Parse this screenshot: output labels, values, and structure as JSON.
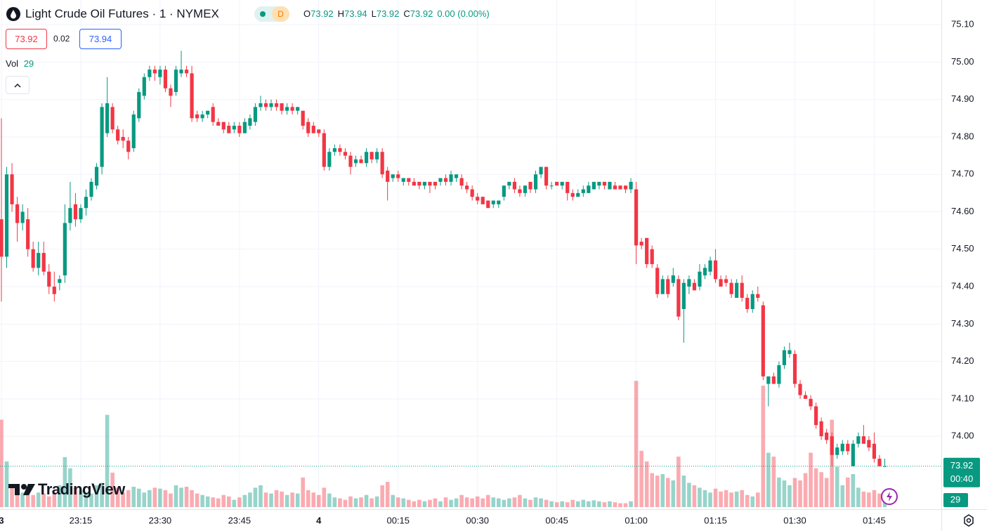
{
  "chart_data": {
    "type": "candlestick",
    "title": "Light Crude Oil Futures · 1 · NYMEX",
    "status_badge": "D",
    "ohlc_legend": [
      {
        "label": "O",
        "value": 73.92
      },
      {
        "label": "H",
        "value": 73.94
      },
      {
        "label": "L",
        "value": 73.92
      },
      {
        "label": "C",
        "value": 73.92
      }
    ],
    "change_label": "0.00 (0.00%)",
    "bid": 73.92,
    "spread": 0.02,
    "ask": 73.94,
    "volume_label": "Vol",
    "last_volume": 29,
    "last_price": 73.92,
    "countdown": "00:40",
    "logo": "TradingView",
    "up_color": "#089981",
    "down_color": "#f23645",
    "volume_up_color": "rgba(8,153,129,0.42)",
    "volume_down_color": "rgba(242,54,69,0.42)",
    "ylim": [
      73.805,
      75.166
    ],
    "yticks": [
      {
        "value": 75.1,
        "label": "75.10"
      },
      {
        "value": 75,
        "label": "75.00"
      },
      {
        "value": 74.9,
        "label": "74.90"
      },
      {
        "value": 74.8,
        "label": "74.80"
      },
      {
        "value": 74.7,
        "label": "74.70"
      },
      {
        "value": 74.6,
        "label": "74.60"
      },
      {
        "value": 74.5,
        "label": "74.50"
      },
      {
        "value": 74.4,
        "label": "74.40"
      },
      {
        "value": 74.3,
        "label": "74.30"
      },
      {
        "value": 74.2,
        "label": "74.20"
      },
      {
        "value": 74.1,
        "label": "74.10"
      },
      {
        "value": 74,
        "label": "74.00"
      }
    ],
    "vlim": [
      0,
      350
    ],
    "grid": true,
    "categories": [
      "3",
      null,
      null,
      null,
      null,
      null,
      null,
      null,
      null,
      null,
      null,
      null,
      null,
      null,
      null,
      "23:15",
      null,
      null,
      null,
      null,
      null,
      null,
      null,
      null,
      null,
      null,
      null,
      null,
      null,
      null,
      "23:30",
      null,
      null,
      null,
      null,
      null,
      null,
      null,
      null,
      null,
      null,
      null,
      null,
      null,
      null,
      "23:45",
      null,
      null,
      null,
      null,
      null,
      null,
      null,
      null,
      null,
      null,
      null,
      null,
      null,
      null,
      "4",
      null,
      null,
      null,
      null,
      null,
      null,
      null,
      null,
      null,
      null,
      null,
      null,
      null,
      null,
      "00:15",
      null,
      null,
      null,
      null,
      null,
      null,
      null,
      null,
      null,
      null,
      null,
      null,
      null,
      null,
      "00:30",
      null,
      null,
      null,
      null,
      null,
      null,
      null,
      null,
      null,
      null,
      null,
      null,
      null,
      null,
      "00:45",
      null,
      null,
      null,
      null,
      null,
      null,
      null,
      null,
      null,
      null,
      null,
      null,
      null,
      null,
      "01:00",
      null,
      null,
      null,
      null,
      null,
      null,
      null,
      null,
      null,
      null,
      null,
      null,
      null,
      null,
      "01:15",
      null,
      null,
      null,
      null,
      null,
      null,
      null,
      null,
      null,
      null,
      null,
      null,
      null,
      null,
      "01:30",
      null,
      null,
      null,
      null,
      null,
      null,
      null,
      null,
      null,
      null,
      null,
      null,
      null,
      null,
      "01:45",
      null,
      null
    ],
    "ohlc": [
      [
        74.58,
        74.85,
        74.36,
        74.48
      ],
      [
        74.48,
        74.72,
        74.45,
        74.7
      ],
      [
        74.7,
        74.73,
        74.6,
        74.62
      ],
      [
        74.62,
        74.64,
        74.52,
        74.57
      ],
      [
        74.57,
        74.62,
        74.55,
        74.6
      ],
      [
        74.58,
        74.61,
        74.48,
        74.5
      ],
      [
        74.5,
        74.52,
        74.44,
        74.45
      ],
      [
        74.45,
        74.52,
        74.43,
        74.49
      ],
      [
        74.49,
        74.52,
        74.43,
        74.44
      ],
      [
        74.44,
        74.46,
        74.38,
        74.4
      ],
      [
        74.4,
        74.44,
        74.36,
        74.38
      ],
      [
        74.41,
        74.43,
        74.39,
        74.42
      ],
      [
        74.43,
        74.62,
        74.41,
        74.57
      ],
      [
        74.57,
        74.68,
        74.55,
        74.61
      ],
      [
        74.62,
        74.65,
        74.56,
        74.58
      ],
      [
        74.58,
        74.62,
        74.57,
        74.61
      ],
      [
        74.61,
        74.66,
        74.59,
        74.64
      ],
      [
        74.64,
        74.69,
        74.63,
        74.68
      ],
      [
        74.67,
        74.73,
        74.66,
        74.72
      ],
      [
        74.72,
        74.89,
        74.7,
        74.88
      ],
      [
        74.81,
        74.96,
        74.8,
        74.89
      ],
      [
        74.88,
        74.89,
        74.81,
        74.82
      ],
      [
        74.82,
        74.83,
        74.78,
        74.79
      ],
      [
        74.8,
        74.82,
        74.77,
        74.79
      ],
      [
        74.79,
        74.8,
        74.74,
        74.76
      ],
      [
        74.77,
        74.87,
        74.76,
        74.86
      ],
      [
        74.85,
        74.93,
        74.84,
        74.92
      ],
      [
        74.91,
        74.97,
        74.9,
        74.96
      ],
      [
        74.96,
        74.99,
        74.95,
        74.98
      ],
      [
        74.98,
        74.99,
        74.95,
        74.97
      ],
      [
        74.96,
        74.99,
        74.94,
        74.98
      ],
      [
        74.98,
        74.99,
        74.92,
        74.93
      ],
      [
        74.93,
        74.94,
        74.88,
        74.91
      ],
      [
        74.92,
        74.99,
        74.91,
        74.98
      ],
      [
        74.97,
        75.03,
        74.96,
        74.98
      ],
      [
        74.98,
        74.99,
        74.96,
        74.97
      ],
      [
        74.97,
        74.99,
        74.84,
        74.85
      ],
      [
        74.86,
        74.87,
        74.84,
        74.85
      ],
      [
        74.85,
        74.87,
        74.84,
        74.86
      ],
      [
        74.86,
        74.87,
        74.85,
        74.87
      ],
      [
        74.88,
        74.89,
        74.83,
        74.84
      ],
      [
        74.84,
        74.85,
        74.83,
        74.83
      ],
      [
        74.84,
        74.84,
        74.81,
        74.82
      ],
      [
        74.83,
        74.84,
        74.81,
        74.81
      ],
      [
        74.82,
        74.84,
        74.81,
        74.83
      ],
      [
        74.83,
        74.84,
        74.8,
        74.81
      ],
      [
        74.81,
        74.85,
        74.81,
        74.84
      ],
      [
        74.83,
        74.86,
        74.82,
        74.85
      ],
      [
        74.84,
        74.89,
        74.83,
        74.88
      ],
      [
        74.88,
        74.91,
        74.87,
        74.89
      ],
      [
        74.89,
        74.9,
        74.87,
        74.88
      ],
      [
        74.88,
        74.9,
        74.87,
        74.89
      ],
      [
        74.89,
        74.9,
        74.87,
        74.88
      ],
      [
        74.89,
        74.89,
        74.86,
        74.87
      ],
      [
        74.87,
        74.89,
        74.86,
        74.88
      ],
      [
        74.88,
        74.89,
        74.86,
        74.87
      ],
      [
        74.87,
        74.88,
        74.86,
        74.88
      ],
      [
        74.87,
        74.87,
        74.82,
        74.83
      ],
      [
        74.84,
        74.85,
        74.8,
        74.81
      ],
      [
        74.83,
        74.84,
        74.81,
        74.81
      ],
      [
        74.82,
        74.82,
        74.8,
        74.81
      ],
      [
        74.81,
        74.82,
        74.71,
        74.72
      ],
      [
        74.72,
        74.77,
        74.71,
        74.76
      ],
      [
        74.76,
        74.78,
        74.75,
        74.77
      ],
      [
        74.77,
        74.78,
        74.75,
        74.76
      ],
      [
        74.76,
        74.77,
        74.74,
        74.75
      ],
      [
        74.75,
        74.76,
        74.7,
        74.72
      ],
      [
        74.73,
        74.75,
        74.72,
        74.74
      ],
      [
        74.74,
        74.75,
        74.73,
        74.73
      ],
      [
        74.73,
        74.77,
        74.72,
        74.76
      ],
      [
        74.76,
        74.76,
        74.73,
        74.74
      ],
      [
        74.74,
        74.77,
        74.73,
        74.76
      ],
      [
        74.76,
        74.77,
        74.69,
        74.7
      ],
      [
        74.71,
        74.72,
        74.63,
        74.68
      ],
      [
        74.69,
        74.7,
        74.68,
        74.7
      ],
      [
        74.7,
        74.71,
        74.68,
        74.69
      ],
      [
        74.68,
        74.69,
        74.67,
        74.69
      ],
      [
        74.69,
        74.69,
        74.67,
        74.68
      ],
      [
        74.68,
        74.69,
        74.67,
        74.67
      ],
      [
        74.68,
        74.68,
        74.66,
        74.67
      ],
      [
        74.67,
        74.68,
        74.66,
        74.68
      ],
      [
        74.68,
        74.68,
        74.65,
        74.67
      ],
      [
        74.68,
        74.68,
        74.66,
        74.67
      ],
      [
        74.68,
        74.69,
        74.67,
        74.69
      ],
      [
        74.69,
        74.7,
        74.67,
        74.68
      ],
      [
        74.68,
        74.71,
        74.67,
        74.7
      ],
      [
        74.69,
        74.7,
        74.68,
        74.7
      ],
      [
        74.69,
        74.7,
        74.66,
        74.67
      ],
      [
        74.67,
        74.68,
        74.65,
        74.66
      ],
      [
        74.66,
        74.67,
        74.63,
        74.64
      ],
      [
        74.64,
        74.65,
        74.62,
        74.63
      ],
      [
        74.64,
        74.64,
        74.62,
        74.62
      ],
      [
        74.63,
        74.63,
        74.61,
        74.61
      ],
      [
        74.62,
        74.63,
        74.61,
        74.63
      ],
      [
        74.62,
        74.63,
        74.61,
        74.63
      ],
      [
        74.64,
        74.67,
        74.63,
        74.67
      ],
      [
        74.67,
        74.68,
        74.66,
        74.68
      ],
      [
        74.68,
        74.69,
        74.65,
        74.66
      ],
      [
        74.66,
        74.67,
        74.64,
        74.65
      ],
      [
        74.65,
        74.67,
        74.64,
        74.67
      ],
      [
        74.68,
        74.68,
        74.65,
        74.66
      ],
      [
        74.66,
        74.71,
        74.65,
        74.7
      ],
      [
        74.7,
        74.72,
        74.69,
        74.72
      ],
      [
        74.72,
        74.72,
        74.66,
        74.67
      ],
      [
        74.67,
        74.68,
        74.66,
        74.67
      ],
      [
        74.68,
        74.68,
        74.67,
        74.67
      ],
      [
        74.67,
        74.68,
        74.66,
        74.68
      ],
      [
        74.68,
        74.68,
        74.63,
        74.65
      ],
      [
        74.65,
        74.66,
        74.63,
        74.64
      ],
      [
        74.64,
        74.66,
        74.64,
        74.65
      ],
      [
        74.65,
        74.67,
        74.64,
        74.66
      ],
      [
        74.65,
        74.68,
        74.65,
        74.67
      ],
      [
        74.66,
        74.68,
        74.66,
        74.68
      ],
      [
        74.67,
        74.68,
        74.66,
        74.68
      ],
      [
        74.68,
        74.68,
        74.66,
        74.67
      ],
      [
        74.66,
        74.68,
        74.66,
        74.68
      ],
      [
        74.67,
        74.68,
        74.66,
        74.66
      ],
      [
        74.67,
        74.67,
        74.66,
        74.66
      ],
      [
        74.67,
        74.67,
        74.65,
        74.66
      ],
      [
        74.66,
        74.69,
        74.65,
        74.68
      ],
      [
        74.66,
        74.68,
        74.46,
        74.51
      ],
      [
        74.52,
        74.53,
        74.5,
        74.51
      ],
      [
        74.53,
        74.53,
        74.45,
        74.46
      ],
      [
        74.5,
        74.51,
        74.45,
        74.46
      ],
      [
        74.45,
        74.46,
        74.37,
        74.38
      ],
      [
        74.38,
        74.43,
        74.38,
        74.42
      ],
      [
        74.42,
        74.43,
        74.37,
        74.38
      ],
      [
        74.41,
        74.45,
        74.4,
        74.43
      ],
      [
        74.42,
        74.43,
        74.31,
        74.32
      ],
      [
        74.34,
        74.42,
        74.25,
        74.41
      ],
      [
        74.4,
        74.43,
        74.38,
        74.42
      ],
      [
        74.41,
        74.42,
        74.39,
        74.39
      ],
      [
        74.4,
        74.46,
        74.39,
        74.44
      ],
      [
        74.43,
        74.46,
        74.42,
        74.45
      ],
      [
        74.44,
        74.48,
        74.43,
        74.47
      ],
      [
        74.47,
        74.5,
        74.41,
        74.42
      ],
      [
        74.42,
        74.43,
        74.4,
        74.4
      ],
      [
        74.42,
        74.43,
        74.4,
        74.41
      ],
      [
        74.41,
        74.42,
        74.37,
        74.38
      ],
      [
        74.37,
        74.42,
        74.37,
        74.41
      ],
      [
        74.41,
        74.43,
        74.36,
        74.37
      ],
      [
        74.37,
        74.38,
        74.33,
        74.34
      ],
      [
        74.34,
        74.39,
        74.33,
        74.38
      ],
      [
        74.38,
        74.4,
        74.36,
        74.37
      ],
      [
        74.35,
        74.36,
        74.15,
        74.16
      ],
      [
        74.14,
        74.16,
        74.08,
        74.16
      ],
      [
        74.16,
        74.17,
        74.14,
        74.14
      ],
      [
        74.14,
        74.2,
        74.13,
        74.19
      ],
      [
        74.19,
        74.24,
        74.18,
        74.23
      ],
      [
        74.22,
        74.25,
        74.21,
        74.23
      ],
      [
        74.22,
        74.23,
        74.13,
        74.14
      ],
      [
        74.14,
        74.15,
        74.1,
        74.11
      ],
      [
        74.11,
        74.12,
        74.1,
        74.1
      ],
      [
        74.1,
        74.11,
        74.07,
        74.08
      ],
      [
        74.08,
        74.09,
        74.02,
        74.03
      ],
      [
        74.04,
        74.05,
        73.99,
        74.0
      ],
      [
        74.01,
        74.02,
        73.98,
        73.99
      ],
      [
        74.0,
        74.01,
        73.92,
        73.95
      ],
      [
        73.95,
        73.98,
        73.94,
        73.97
      ],
      [
        73.96,
        73.99,
        73.95,
        73.98
      ],
      [
        73.98,
        73.99,
        73.95,
        73.96
      ],
      [
        73.92,
        73.99,
        73.92,
        73.98
      ],
      [
        73.98,
        74.01,
        73.97,
        74.0
      ],
      [
        74.0,
        74.03,
        73.98,
        73.98
      ],
      [
        73.99,
        74.0,
        73.96,
        73.97
      ],
      [
        73.98,
        74.01,
        73.93,
        73.94
      ],
      [
        73.94,
        73.95,
        73.92,
        73.92
      ],
      [
        73.92,
        73.94,
        73.92,
        73.92
      ]
    ],
    "volume": [
      180,
      94,
      40,
      35,
      30,
      38,
      25,
      30,
      28,
      22,
      30,
      45,
      103,
      80,
      40,
      35,
      30,
      28,
      45,
      50,
      190,
      71,
      40,
      30,
      35,
      42,
      38,
      30,
      35,
      40,
      38,
      35,
      28,
      45,
      40,
      42,
      35,
      28,
      25,
      22,
      20,
      18,
      25,
      22,
      15,
      20,
      25,
      30,
      40,
      45,
      30,
      28,
      35,
      32,
      25,
      30,
      28,
      61,
      35,
      30,
      25,
      40,
      28,
      20,
      18,
      15,
      22,
      18,
      20,
      25,
      18,
      22,
      45,
      52,
      25,
      20,
      18,
      15,
      12,
      15,
      12,
      15,
      18,
      12,
      20,
      15,
      18,
      25,
      20,
      18,
      22,
      18,
      25,
      20,
      18,
      15,
      18,
      20,
      25,
      18,
      15,
      20,
      18,
      15,
      12,
      10,
      12,
      10,
      15,
      12,
      15,
      12,
      14,
      12,
      10,
      12,
      10,
      8,
      8,
      12,
      260,
      116,
      94,
      70,
      65,
      68,
      60,
      55,
      104,
      65,
      50,
      45,
      40,
      35,
      30,
      38,
      32,
      35,
      30,
      32,
      35,
      25,
      22,
      30,
      250,
      112,
      104,
      61,
      55,
      45,
      60,
      55,
      70,
      112,
      80,
      72,
      60,
      180,
      83,
      45,
      61,
      68,
      40,
      32,
      30,
      35,
      28,
      29
    ]
  }
}
